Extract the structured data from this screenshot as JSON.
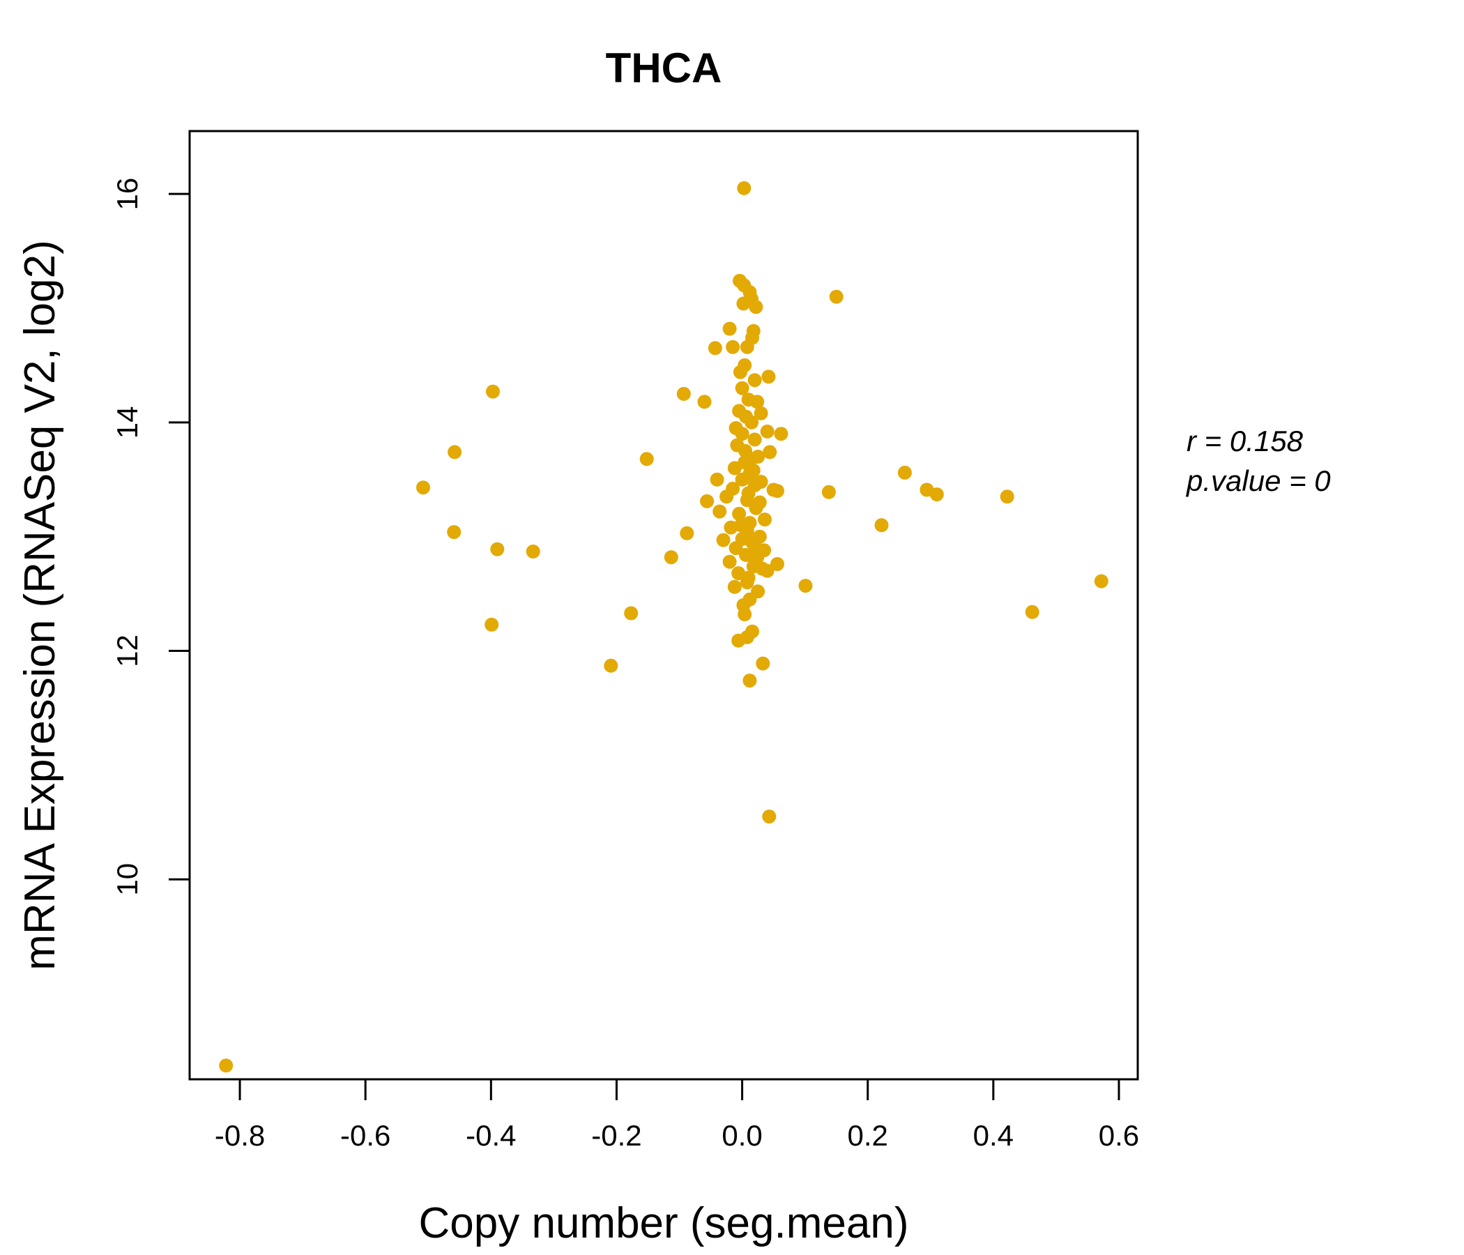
{
  "chart_data": {
    "type": "scatter",
    "title": "THCA",
    "xlabel": "Copy number (seg.mean)",
    "ylabel": "mRNA Expression (RNASeq V2, log2)",
    "xlim": [
      -0.88,
      0.63
    ],
    "ylim": [
      8.25,
      16.55
    ],
    "xticks": [
      -0.8,
      -0.6,
      -0.4,
      -0.2,
      0.0,
      0.2,
      0.4,
      0.6
    ],
    "xtick_labels": [
      "-0.8",
      "-0.6",
      "-0.4",
      "-0.2",
      "0.0",
      "0.2",
      "0.4",
      "0.6"
    ],
    "yticks": [
      10,
      12,
      14,
      16
    ],
    "ytick_labels": [
      "10",
      "12",
      "14",
      "16"
    ],
    "stats": {
      "r_text": "r = 0.158",
      "p_text": "p.value = 0"
    },
    "colors": {
      "title": "#E3A905",
      "points": "#E3A905"
    },
    "grid": false,
    "series": [
      {
        "name": "samples",
        "points": [
          [
            -0.822,
            8.37
          ],
          [
            -0.508,
            13.43
          ],
          [
            -0.458,
            13.74
          ],
          [
            -0.459,
            13.04
          ],
          [
            -0.397,
            14.27
          ],
          [
            -0.39,
            12.89
          ],
          [
            -0.333,
            12.87
          ],
          [
            -0.399,
            12.23
          ],
          [
            -0.209,
            11.87
          ],
          [
            -0.177,
            12.33
          ],
          [
            -0.152,
            13.68
          ],
          [
            -0.113,
            12.82
          ],
          [
            -0.093,
            14.25
          ],
          [
            -0.088,
            13.03
          ],
          [
            -0.06,
            14.18
          ],
          [
            -0.056,
            13.31
          ],
          [
            -0.043,
            14.65
          ],
          [
            -0.04,
            13.5
          ],
          [
            -0.036,
            13.22
          ],
          [
            -0.03,
            12.97
          ],
          [
            -0.02,
            14.82
          ],
          [
            -0.015,
            14.66
          ],
          [
            -0.01,
            13.95
          ],
          [
            -0.006,
            12.09
          ],
          [
            -0.004,
            15.24
          ],
          [
            0.003,
            16.05
          ],
          [
            0.003,
            15.2
          ],
          [
            0.002,
            15.04
          ],
          [
            0.012,
            15.14
          ],
          [
            0.015,
            15.08
          ],
          [
            0.022,
            15.01
          ],
          [
            0.018,
            14.8
          ],
          [
            0.016,
            14.74
          ],
          [
            0.008,
            14.66
          ],
          [
            0.004,
            14.5
          ],
          [
            -0.003,
            14.44
          ],
          [
            0.02,
            14.37
          ],
          [
            0.042,
            14.4
          ],
          [
            0.024,
            14.18
          ],
          [
            0.03,
            14.08
          ],
          [
            0.006,
            14.05
          ],
          [
            0.04,
            13.92
          ],
          [
            0.062,
            13.9
          ],
          [
            0.044,
            13.74
          ],
          [
            0.05,
            13.41
          ],
          [
            0.056,
            13.4
          ],
          [
            0.138,
            13.39
          ],
          [
            0.15,
            15.1
          ],
          [
            0.004,
            13.65
          ],
          [
            0.012,
            13.55
          ],
          [
            0.02,
            13.45
          ],
          [
            0.028,
            13.3
          ],
          [
            0.036,
            13.15
          ],
          [
            0.008,
            13.05
          ],
          [
            0.016,
            12.95
          ],
          [
            0.024,
            12.82
          ],
          [
            0.032,
            12.72
          ],
          [
            0.056,
            12.76
          ],
          [
            0.04,
            12.7
          ],
          [
            0.008,
            12.6
          ],
          [
            0.012,
            12.45
          ],
          [
            0.004,
            12.32
          ],
          [
            0.016,
            12.17
          ],
          [
            0.008,
            12.12
          ],
          [
            0.033,
            11.89
          ],
          [
            0.012,
            11.74
          ],
          [
            0.043,
            10.55
          ],
          [
            0.101,
            12.57
          ],
          [
            0.222,
            13.1
          ],
          [
            0.259,
            13.56
          ],
          [
            0.294,
            13.41
          ],
          [
            0.31,
            13.37
          ],
          [
            0.422,
            13.35
          ],
          [
            0.462,
            12.34
          ],
          [
            0.572,
            12.61
          ],
          [
            0.0,
            14.3
          ],
          [
            0.01,
            14.2
          ],
          [
            -0.005,
            14.1
          ],
          [
            0.015,
            14.0
          ],
          [
            0.0,
            13.9
          ],
          [
            0.02,
            13.85
          ],
          [
            -0.008,
            13.8
          ],
          [
            0.005,
            13.75
          ],
          [
            0.025,
            13.7
          ],
          [
            -0.012,
            13.6
          ],
          [
            0.018,
            13.58
          ],
          [
            0.0,
            13.5
          ],
          [
            0.03,
            13.48
          ],
          [
            -0.015,
            13.42
          ],
          [
            0.01,
            13.38
          ],
          [
            -0.025,
            13.35
          ],
          [
            0.022,
            13.25
          ],
          [
            -0.005,
            13.2
          ],
          [
            0.012,
            13.12
          ],
          [
            -0.018,
            13.08
          ],
          [
            0.028,
            13.0
          ],
          [
            0.0,
            12.98
          ],
          [
            -0.01,
            12.9
          ],
          [
            0.035,
            12.88
          ],
          [
            0.006,
            12.84
          ],
          [
            -0.02,
            12.78
          ],
          [
            0.018,
            12.74
          ],
          [
            -0.006,
            12.68
          ],
          [
            0.01,
            12.64
          ],
          [
            -0.012,
            12.56
          ],
          [
            0.025,
            12.52
          ],
          [
            0.002,
            12.4
          ],
          [
            0.008,
            13.32
          ],
          [
            0.014,
            13.68
          ],
          [
            -0.002,
            13.1
          ],
          [
            0.02,
            12.92
          ]
        ]
      }
    ]
  }
}
